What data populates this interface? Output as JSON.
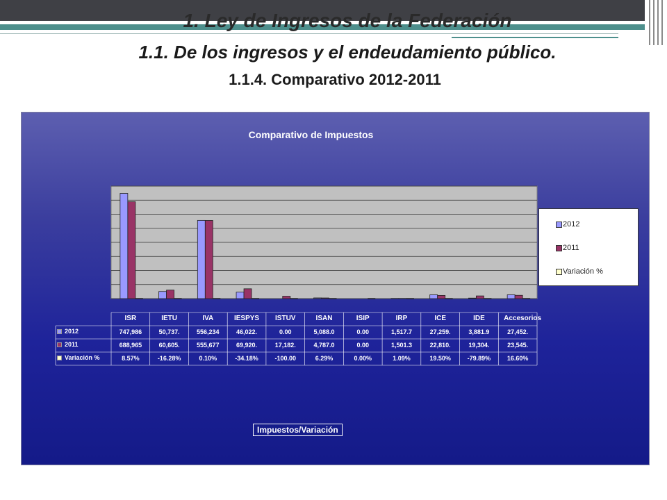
{
  "header": {
    "title1": "1. Ley de Ingresos de la Federación",
    "title2": "1.1.  De los ingresos y el endeudamiento público.",
    "title3": "1.1.4.  Comparativo 2012-2011"
  },
  "chart_data": {
    "type": "bar",
    "title": "Comparativo de Impuestos",
    "categories": [
      "ISR",
      "IETU",
      "IVA",
      "IESPYS",
      "ISTUV",
      "ISAN",
      "ISIP",
      "IRP",
      "ICE",
      "IDE",
      "Accesorios"
    ],
    "series": [
      {
        "name": "2012",
        "values": [
          747986,
          50737,
          556234,
          46022,
          0,
          5088,
          0,
          1517.7,
          27259,
          3881.9,
          27452
        ],
        "color": "#9999ff"
      },
      {
        "name": "2011",
        "values": [
          688965,
          60605,
          555677,
          69920,
          17182,
          4787,
          0,
          1501.3,
          22810,
          19304,
          23545
        ],
        "color": "#993366"
      },
      {
        "name": "Variación %",
        "values": [
          8.57,
          -16.28,
          0.1,
          -34.18,
          -100.0,
          6.29,
          0.0,
          1.09,
          19.5,
          -79.89,
          16.6
        ],
        "color": "#ffffcc"
      }
    ],
    "ylim": [
      0,
      800000
    ],
    "grid": true,
    "legend_position": "right",
    "xlabel": "Impuestos/Variación",
    "table": {
      "rows": [
        {
          "label": "2012",
          "cells": [
            "747,986",
            "50,737.",
            "556,234",
            "46,022.",
            "0.00",
            "5,088.0",
            "0.00",
            "1,517.7",
            "27,259.",
            "3,881.9",
            "27,452."
          ]
        },
        {
          "label": "2011",
          "cells": [
            "688,965",
            "60,605.",
            "555,677",
            "69,920.",
            "17,182.",
            "4,787.0",
            "0.00",
            "1,501.3",
            "22,810.",
            "19,304.",
            "23,545."
          ]
        },
        {
          "label": "Variación  %",
          "cells": [
            "8.57%",
            "-16.28%",
            "0.10%",
            "-34.18%",
            "-100.00",
            "6.29%",
            "0.00%",
            "1.09%",
            "19.50%",
            "-79.89%",
            "16.60%"
          ]
        }
      ]
    }
  }
}
